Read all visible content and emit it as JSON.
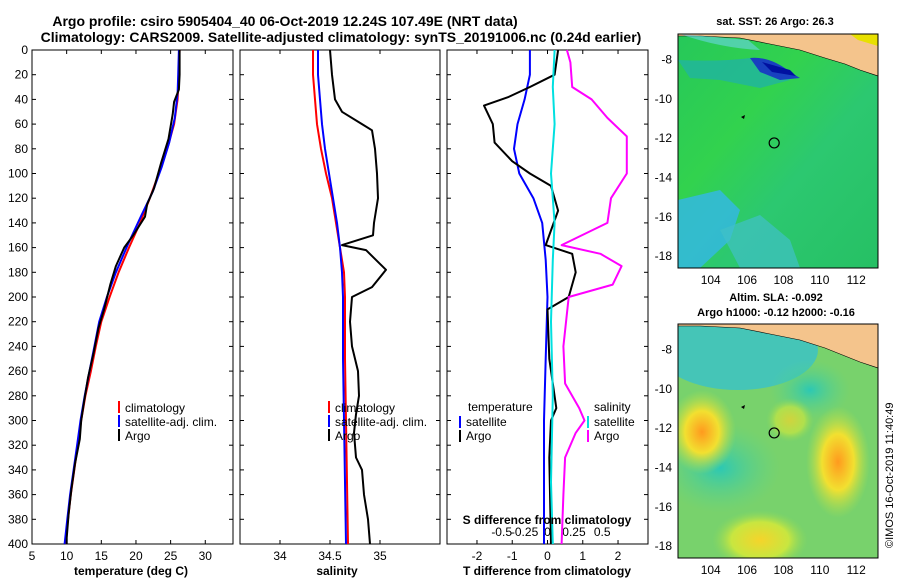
{
  "title": {
    "line1": "Argo profile: csiro 5905404_40 06-Oct-2019 12.24S 107.49E (NRT data)",
    "line2": "Climatology: CARS2009. Satellite-adjusted climatology: synTS_20191006.nc (0.24d earlier)"
  },
  "colors": {
    "climatology": "#ff0000",
    "satellite": "#0000ff",
    "argo": "#000000",
    "salinity": "#ff00ff",
    "sat_salinity": "#00e0e0"
  },
  "chart_data": [
    {
      "type": "line",
      "id": "temperature",
      "xlabel": "temperature (deg C)",
      "ylabel": "",
      "xlim": [
        5,
        34
      ],
      "ylim": [
        400,
        0
      ],
      "xticks": [
        "5",
        "10",
        "15",
        "20",
        "25",
        "30"
      ],
      "xtick_values": [
        5,
        10,
        15,
        20,
        25,
        30
      ],
      "yticks": [
        "0",
        "20",
        "40",
        "60",
        "80",
        "100",
        "120",
        "140",
        "160",
        "180",
        "200",
        "220",
        "240",
        "260",
        "280",
        "300",
        "320",
        "340",
        "360",
        "380",
        "400"
      ],
      "legend": [
        "climatology",
        "satellite-adj. clim.",
        "Argo"
      ],
      "series": [
        {
          "name": "climatology",
          "color": "#ff0000",
          "points": [
            [
              26.3,
              0
            ],
            [
              26.2,
              20
            ],
            [
              26,
              40
            ],
            [
              25.5,
              60
            ],
            [
              24.5,
              80
            ],
            [
              23.3,
              100
            ],
            [
              22,
              120
            ],
            [
              20.6,
              140
            ],
            [
              19,
              160
            ],
            [
              17.5,
              180
            ],
            [
              16.2,
              200
            ],
            [
              15,
              220
            ],
            [
              14.2,
              240
            ],
            [
              13.5,
              260
            ],
            [
              12.7,
              280
            ],
            [
              12.1,
              300
            ],
            [
              11.6,
              320
            ],
            [
              11.1,
              340
            ],
            [
              10.6,
              360
            ],
            [
              10.2,
              380
            ],
            [
              9.8,
              400
            ]
          ]
        },
        {
          "name": "satellite-adj. clim.",
          "color": "#0000ff",
          "points": [
            [
              26.2,
              0
            ],
            [
              26.1,
              20
            ],
            [
              26,
              35
            ],
            [
              25.6,
              55
            ],
            [
              24.8,
              75
            ],
            [
              23.7,
              95
            ],
            [
              22.4,
              115
            ],
            [
              20.7,
              135
            ],
            [
              18.8,
              158
            ],
            [
              17.1,
              180
            ],
            [
              15.8,
              200
            ],
            [
              14.7,
              220
            ],
            [
              14,
              240
            ],
            [
              13.3,
              260
            ],
            [
              12.6,
              280
            ],
            [
              12,
              300
            ],
            [
              11.5,
              320
            ],
            [
              11,
              340
            ],
            [
              10.5,
              360
            ],
            [
              10.1,
              380
            ],
            [
              9.7,
              400
            ]
          ]
        },
        {
          "name": "Argo",
          "color": "#000000",
          "points": [
            [
              26.3,
              0
            ],
            [
              26.3,
              20
            ],
            [
              26.2,
              32
            ],
            [
              25.5,
              42
            ],
            [
              25.3,
              52
            ],
            [
              24.7,
              72
            ],
            [
              23.6,
              92
            ],
            [
              22.6,
              112
            ],
            [
              21.6,
              125
            ],
            [
              21.3,
              135
            ],
            [
              19.6,
              150
            ],
            [
              18.3,
              160
            ],
            [
              17.1,
              175
            ],
            [
              16.3,
              190
            ],
            [
              15.4,
              210
            ],
            [
              14.6,
              225
            ],
            [
              13.9,
              245
            ],
            [
              13.1,
              265
            ],
            [
              12.5,
              285
            ],
            [
              12.1,
              300
            ],
            [
              11.9,
              315
            ],
            [
              11.2,
              335
            ],
            [
              10.7,
              355
            ],
            [
              10.3,
              375
            ],
            [
              10,
              395
            ],
            [
              10,
              400
            ]
          ]
        }
      ]
    },
    {
      "type": "line",
      "id": "salinity",
      "xlabel": "salinity",
      "xlim": [
        33.6,
        35.6
      ],
      "ylim": [
        400,
        0
      ],
      "xticks": [
        "34",
        "34.5",
        "35"
      ],
      "xtick_values": [
        34,
        34.5,
        35
      ],
      "legend": [
        "climatology",
        "satellite-adj. clim.",
        "Argo"
      ],
      "series": [
        {
          "name": "climatology",
          "color": "#ff0000",
          "points": [
            [
              34.33,
              0
            ],
            [
              34.33,
              20
            ],
            [
              34.35,
              40
            ],
            [
              34.37,
              60
            ],
            [
              34.41,
              80
            ],
            [
              34.46,
              100
            ],
            [
              34.52,
              120
            ],
            [
              34.56,
              140
            ],
            [
              34.6,
              160
            ],
            [
              34.64,
              180
            ],
            [
              34.65,
              200
            ],
            [
              34.65,
              250
            ],
            [
              34.66,
              300
            ],
            [
              34.67,
              350
            ],
            [
              34.68,
              400
            ]
          ]
        },
        {
          "name": "satellite-adj. clim.",
          "color": "#0000ff",
          "points": [
            [
              34.38,
              0
            ],
            [
              34.38,
              20
            ],
            [
              34.4,
              40
            ],
            [
              34.42,
              60
            ],
            [
              34.45,
              80
            ],
            [
              34.49,
              100
            ],
            [
              34.53,
              120
            ],
            [
              34.57,
              140
            ],
            [
              34.6,
              160
            ],
            [
              34.62,
              180
            ],
            [
              34.63,
              200
            ],
            [
              34.63,
              250
            ],
            [
              34.64,
              300
            ],
            [
              34.65,
              350
            ],
            [
              34.66,
              400
            ]
          ]
        },
        {
          "name": "Argo",
          "color": "#000000",
          "points": [
            [
              34.5,
              0
            ],
            [
              34.52,
              20
            ],
            [
              34.55,
              40
            ],
            [
              34.62,
              50
            ],
            [
              34.82,
              60
            ],
            [
              34.92,
              65
            ],
            [
              34.95,
              80
            ],
            [
              34.97,
              100
            ],
            [
              34.98,
              120
            ],
            [
              34.94,
              140
            ],
            [
              34.93,
              150
            ],
            [
              34.62,
              158
            ],
            [
              34.86,
              162
            ],
            [
              35.06,
              178
            ],
            [
              34.92,
              192
            ],
            [
              34.72,
              200
            ],
            [
              34.7,
              220
            ],
            [
              34.72,
              240
            ],
            [
              34.78,
              260
            ],
            [
              34.79,
              280
            ],
            [
              34.76,
              295
            ],
            [
              34.74,
              310
            ],
            [
              34.76,
              330
            ],
            [
              34.82,
              340
            ],
            [
              34.84,
              360
            ],
            [
              34.88,
              380
            ],
            [
              34.9,
              400
            ]
          ]
        }
      ]
    },
    {
      "type": "line",
      "id": "difference",
      "xlabel": "T difference from climatology",
      "xlabel_top": "S difference from climatology",
      "xlim": [
        -2.85,
        2.85
      ],
      "ylim": [
        400,
        0
      ],
      "xticks": [
        "-2",
        "-1",
        "0",
        "1",
        "2"
      ],
      "xtick_values": [
        -2,
        -1,
        0,
        1,
        2
      ],
      "sticks": [
        "-0.5",
        "-0.25",
        "0",
        "0.25",
        "0.5"
      ],
      "stick_values": [
        -1.3,
        -0.65,
        0,
        0.75,
        1.55
      ],
      "legend_temperature": [
        "temperature",
        "satellite",
        "Argo"
      ],
      "legend_salinity": [
        "salinity",
        "satellite",
        "Argo"
      ],
      "series": [
        {
          "name": "temperature satellite",
          "color": "#0000ff",
          "points": [
            [
              -0.5,
              0
            ],
            [
              -0.5,
              20
            ],
            [
              -0.65,
              40
            ],
            [
              -0.85,
              60
            ],
            [
              -0.95,
              80
            ],
            [
              -0.8,
              100
            ],
            [
              -0.4,
              120
            ],
            [
              -0.15,
              140
            ],
            [
              -0.05,
              170
            ],
            [
              0,
              200
            ],
            [
              -0.05,
              250
            ],
            [
              -0.1,
              300
            ],
            [
              -0.1,
              350
            ],
            [
              -0.1,
              400
            ]
          ]
        },
        {
          "name": "temperature Argo",
          "color": "#000000",
          "points": [
            [
              0.3,
              0
            ],
            [
              0.2,
              20
            ],
            [
              -0.5,
              30
            ],
            [
              -1.1,
              38
            ],
            [
              -1.8,
              45
            ],
            [
              -1.55,
              60
            ],
            [
              -1.5,
              75
            ],
            [
              -1,
              90
            ],
            [
              -0.5,
              100
            ],
            [
              0.1,
              110
            ],
            [
              0.3,
              130
            ],
            [
              -0.05,
              158
            ],
            [
              0.7,
              165
            ],
            [
              0.8,
              180
            ],
            [
              0.6,
              200
            ],
            [
              0,
              210
            ],
            [
              0.05,
              250
            ],
            [
              0.25,
              290
            ],
            [
              0.1,
              300
            ],
            [
              0.05,
              330
            ],
            [
              0.1,
              400
            ]
          ]
        },
        {
          "name": "salinity satellite",
          "color": "#00e0e0",
          "points": [
            [
              0.2,
              0
            ],
            [
              0.15,
              30
            ],
            [
              0.2,
              60
            ],
            [
              0.1,
              100
            ],
            [
              0.2,
              140
            ],
            [
              0.15,
              170
            ],
            [
              0.1,
              220
            ],
            [
              0.15,
              280
            ],
            [
              0.1,
              350
            ],
            [
              0.15,
              400
            ]
          ]
        },
        {
          "name": "salinity Argo",
          "color": "#ff00ff",
          "points": [
            [
              0.55,
              0
            ],
            [
              0.65,
              10
            ],
            [
              0.7,
              30
            ],
            [
              1.25,
              40
            ],
            [
              1.7,
              55
            ],
            [
              2.25,
              70
            ],
            [
              2.25,
              100
            ],
            [
              1.8,
              120
            ],
            [
              1.7,
              140
            ],
            [
              0.4,
              158
            ],
            [
              1.5,
              165
            ],
            [
              2.1,
              175
            ],
            [
              1.85,
              190
            ],
            [
              0.6,
              200
            ],
            [
              0.45,
              240
            ],
            [
              0.5,
              270
            ],
            [
              0.9,
              290
            ],
            [
              1.05,
              300
            ],
            [
              0.8,
              310
            ],
            [
              0.5,
              330
            ],
            [
              0.45,
              360
            ],
            [
              0.4,
              400
            ]
          ]
        }
      ]
    }
  ],
  "maps": [
    {
      "id": "sst",
      "title": "sat. SST: 26 Argo: 26.3",
      "title2": "",
      "xticks": [
        "104",
        "106",
        "108",
        "110",
        "112"
      ],
      "yticks": [
        "-8",
        "-10",
        "-12",
        "-14",
        "-16",
        "-18"
      ],
      "marker": [
        107.49,
        -12.24
      ]
    },
    {
      "id": "sla",
      "title": "Altim. SLA: -0.092",
      "title2": "Argo h1000: -0.12 h2000: -0.16",
      "xticks": [
        "104",
        "106",
        "108",
        "110",
        "112"
      ],
      "yticks": [
        "-8",
        "-10",
        "-12",
        "-14",
        "-16",
        "-18"
      ],
      "marker": [
        107.49,
        -12.24
      ]
    }
  ],
  "watermark": "©IMOS 16-Oct-2019 11:40:49"
}
